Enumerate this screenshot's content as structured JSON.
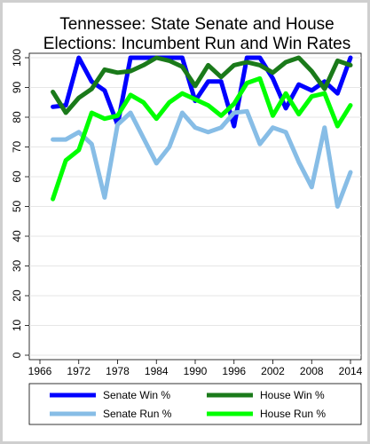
{
  "chart_data": {
    "type": "line",
    "title_lines": [
      "Tennessee: State Senate and House",
      "Elections: Incumbent Run and Win Rates"
    ],
    "xlabel": "",
    "ylabel": "",
    "xlim": [
      1966,
      2014
    ],
    "ylim": [
      0,
      100
    ],
    "x_ticks": [
      1966,
      1972,
      1978,
      1984,
      1990,
      1996,
      2002,
      2008,
      2014
    ],
    "y_ticks": [
      0,
      10,
      20,
      30,
      40,
      50,
      60,
      70,
      80,
      90,
      100
    ],
    "grid": true,
    "legend_position": "bottom",
    "x": [
      1968,
      1970,
      1972,
      1974,
      1976,
      1978,
      1980,
      1982,
      1984,
      1986,
      1988,
      1990,
      1992,
      1994,
      1996,
      1998,
      2000,
      2002,
      2004,
      2006,
      2008,
      2010,
      2012,
      2014
    ],
    "series": [
      {
        "name": "Senate Win %",
        "color": "#0000ff",
        "width": 5,
        "values": [
          83.5,
          84,
          100,
          92,
          89,
          77.5,
          100,
          100,
          100,
          100,
          100,
          85.5,
          92,
          92,
          77,
          100,
          100,
          93,
          83,
          91,
          89,
          92,
          88,
          100
        ]
      },
      {
        "name": "House Win %",
        "color": "#1a7a1a",
        "width": 5,
        "values": [
          88.5,
          81.5,
          86.5,
          89.5,
          96,
          95,
          95.5,
          97.5,
          100,
          99,
          97,
          90.5,
          97.5,
          93.5,
          97.5,
          98.5,
          97.5,
          95,
          98.5,
          100,
          95.5,
          89.5,
          99,
          97.5
        ]
      },
      {
        "name": "Senate Run %",
        "color": "#87bde6",
        "width": 5,
        "values": [
          72.5,
          72.5,
          75,
          71,
          53,
          77.5,
          81.5,
          73,
          64.5,
          70,
          81.5,
          76.5,
          75,
          76.5,
          81.5,
          82,
          71,
          76.5,
          75,
          65,
          56.5,
          76.5,
          50,
          61.5
        ]
      },
      {
        "name": "House Run %",
        "color": "#00ff00",
        "width": 5,
        "values": [
          52.5,
          65.5,
          69,
          81.5,
          79.5,
          80.5,
          87.5,
          85,
          79.5,
          85,
          88,
          86,
          84,
          80.5,
          84.5,
          91.5,
          93,
          80.5,
          88,
          81,
          87,
          88,
          77,
          84
        ]
      }
    ]
  }
}
